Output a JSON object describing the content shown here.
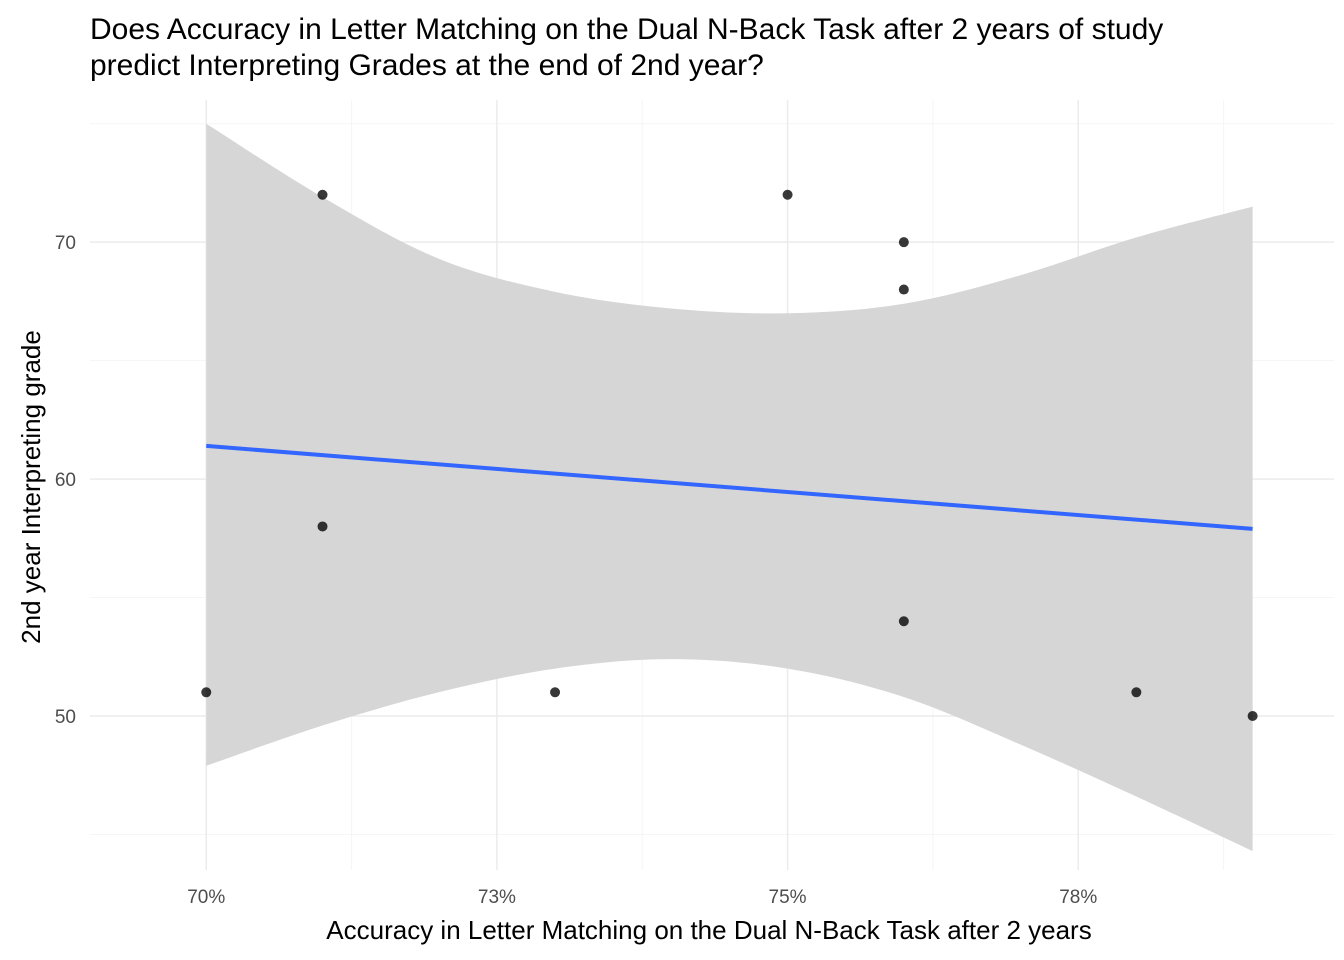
{
  "chart_data": {
    "type": "scatter",
    "title_lines": [
      "Does Accuracy in Letter Matching on the Dual N-Back Task after 2 years of study",
      "predict Interpreting Grades at the end of 2nd year?"
    ],
    "xlabel": "Accuracy in Letter Matching on the Dual N-Back Task after 2 years",
    "ylabel": "2nd year Interpreting grade",
    "xlim": [
      0.69,
      0.797
    ],
    "ylim": [
      43.5,
      76
    ],
    "x_ticks": [
      {
        "value": 0.7,
        "label": "70%"
      },
      {
        "value": 0.725,
        "label": "73%"
      },
      {
        "value": 0.75,
        "label": "75%"
      },
      {
        "value": 0.775,
        "label": "78%"
      }
    ],
    "x_minor_ticks": [
      0.7125,
      0.7375,
      0.7625,
      0.7875
    ],
    "y_ticks": [
      {
        "value": 50,
        "label": "50"
      },
      {
        "value": 60,
        "label": "60"
      },
      {
        "value": 70,
        "label": "70"
      }
    ],
    "y_minor_ticks": [
      45,
      55,
      65,
      75
    ],
    "points": [
      {
        "x": 0.7,
        "y": 51
      },
      {
        "x": 0.71,
        "y": 72
      },
      {
        "x": 0.71,
        "y": 58
      },
      {
        "x": 0.73,
        "y": 51
      },
      {
        "x": 0.75,
        "y": 72
      },
      {
        "x": 0.76,
        "y": 70
      },
      {
        "x": 0.76,
        "y": 68
      },
      {
        "x": 0.76,
        "y": 54
      },
      {
        "x": 0.78,
        "y": 51
      },
      {
        "x": 0.79,
        "y": 50
      }
    ],
    "fit_line": {
      "x": [
        0.7,
        0.79
      ],
      "y": [
        61.4,
        57.9
      ]
    },
    "confidence_band": {
      "x": [
        0.7,
        0.71,
        0.72,
        0.73,
        0.74,
        0.75,
        0.76,
        0.77,
        0.78,
        0.79
      ],
      "upper": [
        75.0,
        71.9,
        69.3,
        67.9,
        67.2,
        67.0,
        67.4,
        68.6,
        70.2,
        71.5
      ],
      "lower": [
        47.9,
        49.6,
        51.0,
        52.0,
        52.4,
        52.0,
        50.8,
        48.8,
        46.6,
        44.3
      ]
    },
    "grid": true,
    "colors": {
      "point": "#000000",
      "fit_line": "#3366FF",
      "band": "#d6d6d6",
      "grid_major": "#ebebeb",
      "grid_minor": "#f5f5f5"
    }
  }
}
